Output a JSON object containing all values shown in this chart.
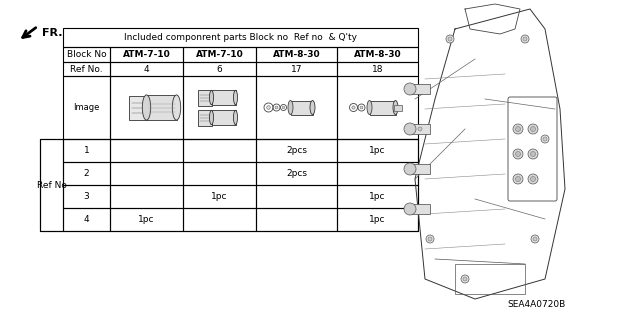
{
  "title": "Included componrent parts Block no  Ref no  & Q'ty",
  "header_row": [
    "Block No",
    "ATM-7-10",
    "ATM-7-10",
    "ATM-8-30",
    "ATM-8-30"
  ],
  "ref_no_row": [
    "Ref No.",
    "4",
    "6",
    "17",
    "18"
  ],
  "ref_no_label": "Ref No",
  "body_rows": [
    [
      "1",
      "",
      "",
      "2pcs",
      "1pc"
    ],
    [
      "2",
      "",
      "",
      "2pcs",
      ""
    ],
    [
      "3",
      "",
      "1pc",
      "",
      "1pc"
    ],
    [
      "4",
      "1pc",
      "",
      "",
      "1pc"
    ]
  ],
  "background_color": "#ffffff",
  "table_line_color": "#000000",
  "bold_cols": [
    1,
    2,
    3,
    4
  ],
  "part_code": "SEA4A0720B",
  "fr_label": "FR.",
  "fig_width": 6.4,
  "fig_height": 3.19
}
